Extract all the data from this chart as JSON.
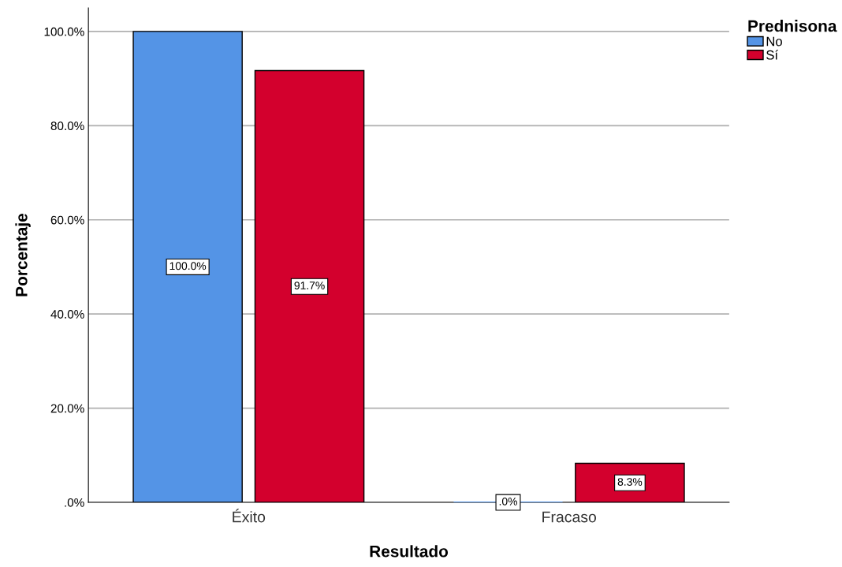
{
  "chart_data": {
    "type": "bar",
    "xlabel": "Resultado",
    "ylabel": "Porcentaje",
    "legend_title": "Prednisona",
    "categories": [
      "Éxito",
      "Fracaso"
    ],
    "series": [
      {
        "name": "No",
        "color": "#5494e6",
        "values": [
          100.0,
          0.0
        ],
        "value_labels": [
          "100.0%",
          ".0%"
        ]
      },
      {
        "name": "Sí",
        "color": "#d3002d",
        "values": [
          91.7,
          8.3
        ],
        "value_labels": [
          "91.7%",
          "8.3%"
        ]
      }
    ],
    "ylim": [
      0,
      105
    ],
    "yticks": [
      {
        "value": 0,
        "label": ".0%"
      },
      {
        "value": 20,
        "label": "20.0%"
      },
      {
        "value": 40,
        "label": "40.0%"
      },
      {
        "value": 60,
        "label": "60.0%"
      },
      {
        "value": 80,
        "label": "80.0%"
      },
      {
        "value": 100,
        "label": "100.0%"
      }
    ],
    "grid": "y",
    "legend": "top right"
  }
}
